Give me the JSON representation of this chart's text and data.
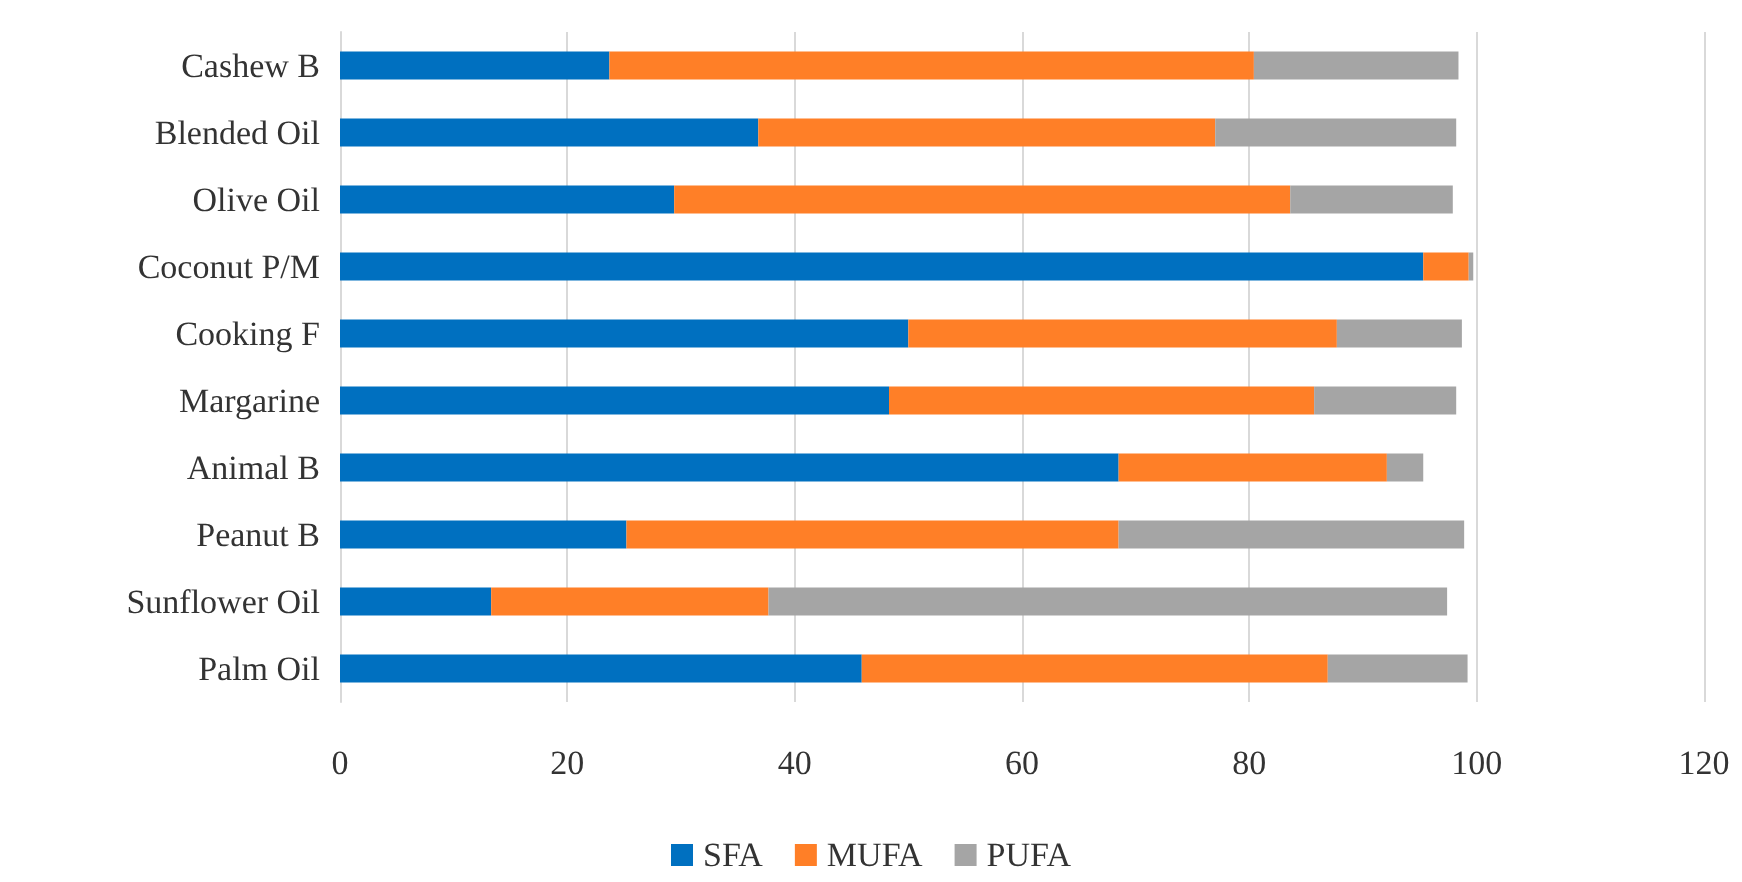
{
  "chart_data": {
    "type": "bar",
    "orientation": "horizontal",
    "stacked": true,
    "categories": [
      "Cashew B",
      "Blended Oil",
      "Olive Oil",
      "Coconut P/M",
      "Cooking F",
      "Margarine",
      "Animal B",
      "Peanut B",
      "Sunflower Oil",
      "Palm Oil"
    ],
    "series": [
      {
        "name": "SFA",
        "color": "#0070c0",
        "values": [
          23.7,
          36.8,
          29.4,
          95.3,
          50.0,
          48.3,
          68.5,
          25.2,
          13.3,
          45.9
        ]
      },
      {
        "name": "MUFA",
        "color": "#ff7f27",
        "values": [
          56.7,
          40.2,
          54.2,
          4.0,
          37.7,
          37.4,
          23.6,
          43.3,
          24.4,
          41.0
        ]
      },
      {
        "name": "PUFA",
        "color": "#a5a5a5",
        "values": [
          18.0,
          21.2,
          14.3,
          0.4,
          11.0,
          12.5,
          3.2,
          30.4,
          59.7,
          12.3
        ]
      }
    ],
    "xlim": [
      0,
      120
    ],
    "xticks": [
      0,
      20,
      40,
      60,
      80,
      100,
      120
    ],
    "grid": "x",
    "legend": "bottom"
  }
}
